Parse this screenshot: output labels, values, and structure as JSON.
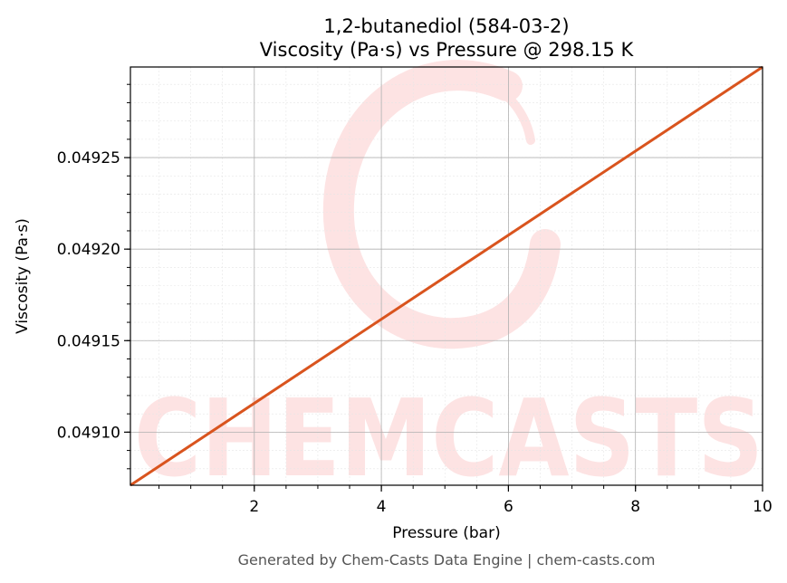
{
  "chart_data": {
    "type": "line",
    "title": "1,2-butanediol (584-03-2)",
    "subtitle": "Viscosity (Pa·s) vs Pressure @ 298.15 K",
    "xlabel": "Pressure (bar)",
    "ylabel": "Viscosity (Pa·s)",
    "xlim": [
      0.05,
      10
    ],
    "ylim": [
      0.049071,
      0.0492995
    ],
    "x_ticks": [
      2,
      4,
      6,
      8,
      10
    ],
    "x_tick_labels": [
      "2",
      "4",
      "6",
      "8",
      "10"
    ],
    "y_ticks": [
      0.0491,
      0.04915,
      0.0492,
      0.04925
    ],
    "y_tick_labels": [
      "0.04910",
      "0.04915",
      "0.04920",
      "0.04925"
    ],
    "grid": true,
    "series": [
      {
        "color": "#d9541e",
        "x": [
          0.05,
          10
        ],
        "y": [
          0.049071,
          0.0492995
        ]
      }
    ]
  },
  "watermark": {
    "text": "CHEMCASTS",
    "color": "#fde3e3"
  },
  "footer": "Generated by Chem-Casts Data Engine | chem-casts.com"
}
